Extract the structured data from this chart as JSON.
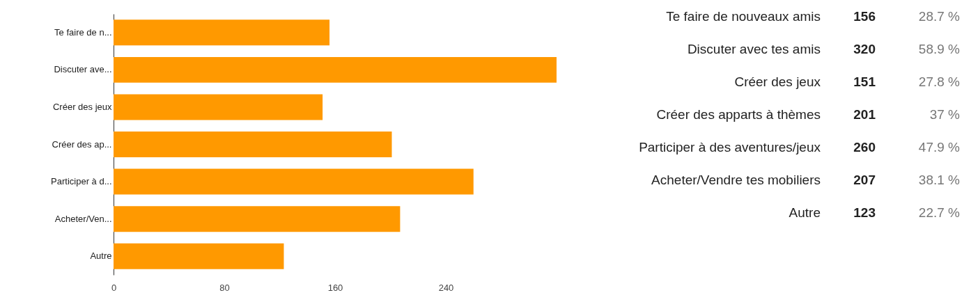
{
  "chart_data": [
    {
      "type": "bar",
      "orientation": "horizontal",
      "color": "#ff9900",
      "categories": [
        "Te faire de n...",
        "Discuter ave...",
        "Créer des jeux",
        "Créer des ap...",
        "Participer à d...",
        "Acheter/Ven...",
        "Autre"
      ],
      "values": [
        156,
        320,
        151,
        201,
        260,
        207,
        123
      ],
      "xlim": [
        0,
        320
      ],
      "xticks": [
        0,
        80,
        160,
        240
      ],
      "grid": false,
      "legend": false
    },
    {
      "type": "other",
      "categories": [
        "Te faire de nouveaux amis",
        "Discuter avec tes amis",
        "Créer des jeux",
        "Créer des apparts à thèmes",
        "Participer à des aventures/jeux",
        "Acheter/Vendre tes mobiliers",
        "Autre"
      ],
      "values": [
        156,
        320,
        151,
        201,
        260,
        207,
        123
      ],
      "annotations": [
        "28.7 %",
        "58.9 %",
        "27.8 %",
        "37 %",
        "47.9 %",
        "38.1 %",
        "22.7 %"
      ],
      "data_labels": true
    }
  ]
}
